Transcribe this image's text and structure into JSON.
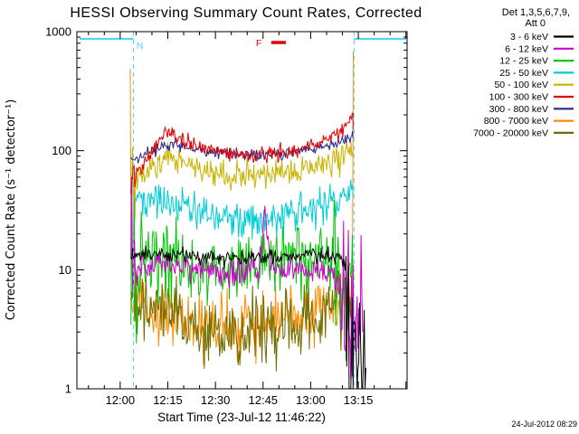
{
  "timestamp": "24-Jul-2012 08:29",
  "legend": {
    "header1": "Det 1,3,5,6,7,9,",
    "header2": "Att 0"
  },
  "chart_data": {
    "type": "line",
    "title": "HESSI Observing Summary Count Rates, Corrected",
    "x_axis": {
      "label": "Start Time (23-Jul-12 11:46:22)",
      "start_minutes": 0,
      "end_minutes": 104,
      "ticks": [
        {
          "t": 13.633,
          "label": "12:00"
        },
        {
          "t": 28.633,
          "label": "12:15"
        },
        {
          "t": 43.633,
          "label": "12:30"
        },
        {
          "t": 58.633,
          "label": "12:45"
        },
        {
          "t": 73.633,
          "label": "13:00"
        },
        {
          "t": 88.633,
          "label": "13:15"
        }
      ],
      "minor_tick_step_minutes": 5
    },
    "y_axis": {
      "label": "Corrected Count Rate (s⁻¹ detector⁻¹)",
      "scale": "log",
      "range": [
        1,
        1000
      ],
      "ticks": [
        {
          "v": 1,
          "label": "1"
        },
        {
          "v": 10,
          "label": "10"
        },
        {
          "v": 100,
          "label": "100"
        },
        {
          "v": 1000,
          "label": "1000"
        }
      ]
    },
    "flags": {
      "night_label": "N",
      "flare_label": "F",
      "color_night": "#55d5ea",
      "color_flare": "#e00000",
      "night_line_value": 870,
      "night_segments": [
        [
          0.8,
          17.8
        ],
        [
          87.3,
          103.6
        ]
      ],
      "eclipse_boundaries": [
        17.8,
        87.3
      ],
      "night_label_t": 19.8,
      "flare_label_t": 57.3,
      "flare_bar": {
        "t1": 61.2,
        "t2": 65.8,
        "value": 810
      }
    },
    "series": [
      {
        "name": "3 - 6 keV",
        "color": "#000000",
        "noise": 0.03,
        "noise_zones": [
          {
            "from": 84.6,
            "to": 92,
            "noise": 0.38
          }
        ],
        "points": [
          [
            17,
            13
          ],
          [
            20,
            13.2
          ],
          [
            25,
            13.5
          ],
          [
            30,
            13.4
          ],
          [
            35,
            13
          ],
          [
            40,
            12.8
          ],
          [
            45,
            12.6
          ],
          [
            50,
            12.6
          ],
          [
            55,
            12.8
          ],
          [
            60,
            13
          ],
          [
            65,
            13
          ],
          [
            70,
            13.3
          ],
          [
            75,
            13.4
          ],
          [
            80,
            13
          ],
          [
            84,
            12.5
          ],
          [
            85,
            8
          ],
          [
            85.5,
            2.5
          ],
          [
            86,
            1.5
          ],
          [
            86.5,
            2.2
          ],
          [
            87,
            1.3
          ],
          [
            87.5,
            1.9
          ],
          [
            88,
            1.4
          ],
          [
            88.5,
            2.3
          ],
          [
            89,
            1.5
          ],
          [
            89.5,
            2.2
          ],
          [
            90,
            1.3
          ],
          [
            90.5,
            1.8
          ],
          [
            91,
            1.5
          ]
        ]
      },
      {
        "name": "6 - 12 keV",
        "color": "#cc00cc",
        "noise": 0.055,
        "noise_zones": [
          {
            "from": 16,
            "to": 19,
            "noise": 0.3
          },
          {
            "from": 83,
            "to": 90,
            "noise": 0.45
          }
        ],
        "points": [
          [
            17,
            9.5
          ],
          [
            20,
            10.2
          ],
          [
            24,
            10.8
          ],
          [
            28,
            11.2
          ],
          [
            32,
            11
          ],
          [
            36,
            10.5
          ],
          [
            40,
            10
          ],
          [
            44,
            9.7
          ],
          [
            48,
            9.5
          ],
          [
            52,
            9.6
          ],
          [
            56,
            10
          ],
          [
            57.5,
            10.8
          ],
          [
            58.3,
            15
          ],
          [
            58.8,
            25
          ],
          [
            59.2,
            34
          ],
          [
            59.6,
            27
          ],
          [
            60,
            19
          ],
          [
            60.6,
            13.5
          ],
          [
            61.5,
            11.5
          ],
          [
            63,
            10.8
          ],
          [
            66,
            10.3
          ],
          [
            70,
            10
          ],
          [
            74,
            9.8
          ],
          [
            78,
            9.3
          ],
          [
            80,
            8.8
          ],
          [
            82,
            7.8
          ],
          [
            84,
            5.5
          ],
          [
            85.5,
            4
          ],
          [
            87,
            4.5
          ],
          [
            88,
            3.2
          ],
          [
            89,
            4
          ],
          [
            90,
            3
          ]
        ]
      },
      {
        "name": "12 - 25 keV",
        "color": "#00c800",
        "noise": 0.13,
        "noise_zones": [
          {
            "from": 16,
            "to": 20.5,
            "noise": 0.42
          },
          {
            "from": 20.5,
            "to": 30,
            "noise": 0.22
          },
          {
            "from": 81,
            "to": 88,
            "noise": 0.3
          }
        ],
        "points": [
          [
            17,
            9
          ],
          [
            18,
            12
          ],
          [
            19,
            10
          ],
          [
            20,
            15
          ],
          [
            21,
            16
          ],
          [
            22,
            15
          ],
          [
            23,
            14
          ],
          [
            25,
            13.5
          ],
          [
            27,
            14.5
          ],
          [
            29,
            13.5
          ],
          [
            31,
            12
          ],
          [
            33,
            11
          ],
          [
            36,
            10.5
          ],
          [
            40,
            10
          ],
          [
            44,
            10
          ],
          [
            48,
            10.3
          ],
          [
            52,
            10.8
          ],
          [
            56,
            11
          ],
          [
            60,
            11.3
          ],
          [
            64,
            11.8
          ],
          [
            68,
            12.3
          ],
          [
            72,
            12.8
          ],
          [
            76,
            12.8
          ],
          [
            79,
            12
          ],
          [
            81,
            10.5
          ],
          [
            83,
            8.5
          ],
          [
            85,
            7.5
          ],
          [
            86,
            8
          ],
          [
            87,
            7
          ]
        ]
      },
      {
        "name": "25 - 50 keV",
        "color": "#00cdd4",
        "noise": 0.075,
        "points": [
          [
            17,
            46
          ],
          [
            18,
            43
          ],
          [
            20,
            41
          ],
          [
            22,
            40
          ],
          [
            25,
            38.5
          ],
          [
            28,
            37
          ],
          [
            31,
            35
          ],
          [
            34,
            32.5
          ],
          [
            37,
            30.5
          ],
          [
            40,
            29
          ],
          [
            44,
            27.5
          ],
          [
            48,
            26.5
          ],
          [
            52,
            26
          ],
          [
            56,
            26
          ],
          [
            60,
            26.5
          ],
          [
            64,
            27.5
          ],
          [
            68,
            29
          ],
          [
            72,
            31
          ],
          [
            76,
            33.5
          ],
          [
            80,
            36.5
          ],
          [
            83,
            39
          ],
          [
            85,
            41.5
          ],
          [
            86.5,
            44
          ],
          [
            87,
            42
          ]
        ]
      },
      {
        "name": "50 - 100 keV",
        "color": "#c8b400",
        "noise": 0.06,
        "noise_zones": [
          {
            "from": 16,
            "to": 19,
            "noise": 0.18
          }
        ],
        "points": [
          [
            17,
            47
          ],
          [
            18,
            52
          ],
          [
            19,
            57
          ],
          [
            21,
            64
          ],
          [
            23,
            72
          ],
          [
            25,
            79
          ],
          [
            27,
            85
          ],
          [
            28.5,
            88
          ],
          [
            30,
            86
          ],
          [
            32,
            82
          ],
          [
            34,
            77
          ],
          [
            37,
            71
          ],
          [
            40,
            67
          ],
          [
            44,
            63
          ],
          [
            48,
            61
          ],
          [
            52,
            60
          ],
          [
            56,
            60
          ],
          [
            60,
            61
          ],
          [
            64,
            63
          ],
          [
            68,
            66
          ],
          [
            71,
            69
          ],
          [
            74,
            73
          ],
          [
            77,
            78
          ],
          [
            80,
            84
          ],
          [
            82,
            88
          ],
          [
            84,
            91
          ],
          [
            85.5,
            95
          ],
          [
            86.6,
            102
          ],
          [
            87,
            96
          ]
        ]
      },
      {
        "name": "100 - 300 keV",
        "color": "#e00000",
        "noise": 0.032,
        "noise_zones": [
          {
            "from": 16,
            "to": 18.5,
            "noise": 0.1
          }
        ],
        "points": [
          [
            17,
            52
          ],
          [
            18,
            58
          ],
          [
            19,
            64
          ],
          [
            21,
            76
          ],
          [
            23,
            92
          ],
          [
            25,
            112
          ],
          [
            26.5,
            128
          ],
          [
            27.5,
            140
          ],
          [
            28.3,
            148
          ],
          [
            29,
            139
          ],
          [
            29.7,
            146
          ],
          [
            30.5,
            142
          ],
          [
            32,
            133
          ],
          [
            34,
            122
          ],
          [
            36,
            114
          ],
          [
            39,
            107
          ],
          [
            42,
            101
          ],
          [
            46,
            97
          ],
          [
            50,
            94
          ],
          [
            54,
            92
          ],
          [
            58,
            91
          ],
          [
            62,
            93
          ],
          [
            66,
            97
          ],
          [
            70,
            103
          ],
          [
            73,
            110
          ],
          [
            76,
            118
          ],
          [
            79,
            127
          ],
          [
            81,
            136
          ],
          [
            83,
            148
          ],
          [
            84.5,
            160
          ],
          [
            85.5,
            172
          ],
          [
            86.3,
            188
          ],
          [
            86.9,
            207
          ],
          [
            87,
            150
          ]
        ]
      },
      {
        "name": "300 - 800 keV",
        "color": "#26268c",
        "noise": 0.025,
        "points": [
          [
            17,
            80
          ],
          [
            19,
            87
          ],
          [
            22,
            96
          ],
          [
            25,
            104
          ],
          [
            27.5,
            112
          ],
          [
            29.5,
            114
          ],
          [
            32,
            110
          ],
          [
            35,
            106
          ],
          [
            39,
            101
          ],
          [
            43,
            97
          ],
          [
            47,
            95
          ],
          [
            51,
            93.5
          ],
          [
            55,
            93
          ],
          [
            59,
            93.5
          ],
          [
            63,
            95
          ],
          [
            67,
            98
          ],
          [
            71,
            102
          ],
          [
            75,
            106
          ],
          [
            79,
            111
          ],
          [
            82,
            115
          ],
          [
            84,
            119
          ],
          [
            85.5,
            124
          ],
          [
            86.6,
            132
          ],
          [
            87,
            127
          ]
        ]
      },
      {
        "name": "800 - 7000 keV",
        "color": "#ff8c00",
        "noise": 0.13,
        "points": [
          [
            16.8,
            680
          ],
          [
            16.95,
            60
          ],
          [
            17.1,
            5.5
          ],
          [
            19,
            5
          ],
          [
            22,
            4.6
          ],
          [
            26,
            4.2
          ],
          [
            30,
            3.9
          ],
          [
            34,
            3.7
          ],
          [
            38,
            3.5
          ],
          [
            42,
            3.4
          ],
          [
            46,
            3.3
          ],
          [
            50,
            3.3
          ],
          [
            54,
            3.35
          ],
          [
            58,
            3.45
          ],
          [
            62,
            3.6
          ],
          [
            66,
            3.75
          ],
          [
            70,
            3.95
          ],
          [
            74,
            4.3
          ],
          [
            78,
            4.7
          ],
          [
            81,
            5.1
          ],
          [
            84,
            5.6
          ],
          [
            86,
            6
          ],
          [
            86.8,
            6.3
          ],
          [
            86.95,
            120
          ],
          [
            87.05,
            680
          ]
        ]
      },
      {
        "name": "7000 - 20000 keV",
        "color": "#6e6e00",
        "noise": 0.15,
        "points": [
          [
            17,
            6
          ],
          [
            19,
            5.5
          ],
          [
            22,
            5
          ],
          [
            26,
            4.5
          ],
          [
            30,
            4.05
          ],
          [
            34,
            3.65
          ],
          [
            38,
            3.35
          ],
          [
            42,
            3.15
          ],
          [
            46,
            3
          ],
          [
            50,
            2.95
          ],
          [
            54,
            2.95
          ],
          [
            58,
            3.05
          ],
          [
            62,
            3.2
          ],
          [
            66,
            3.4
          ],
          [
            70,
            3.65
          ],
          [
            74,
            4.05
          ],
          [
            78,
            4.55
          ],
          [
            81,
            4.95
          ],
          [
            84,
            5.45
          ],
          [
            86,
            5.75
          ],
          [
            87,
            5.5
          ]
        ]
      }
    ]
  }
}
